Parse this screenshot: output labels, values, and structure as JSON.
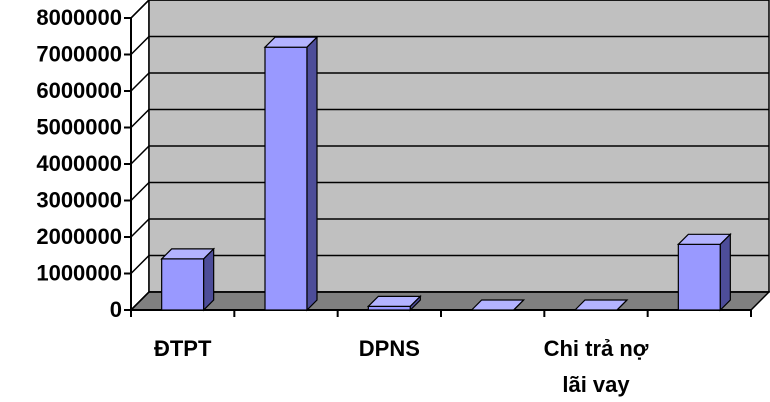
{
  "chart_data": {
    "type": "bar",
    "title": "",
    "xlabel": "",
    "ylabel": "",
    "ylim": [
      0,
      8000000
    ],
    "yticks": [
      0,
      1000000,
      2000000,
      3000000,
      4000000,
      5000000,
      6000000,
      7000000,
      8000000
    ],
    "categories": [
      "ĐTPT",
      "",
      "DPNS",
      "",
      "Chi trả nợ lãi vay",
      ""
    ],
    "category_label_lines": [
      [
        "ĐTPT"
      ],
      [],
      [
        "DPNS"
      ],
      [],
      [
        "Chi trả nợ",
        "lãi vay"
      ],
      []
    ],
    "values": [
      1400000,
      7200000,
      100000,
      0,
      0,
      1800000
    ],
    "grid": true,
    "legend": "none",
    "style": "3d-column"
  },
  "colors": {
    "bar_front": "#9999ff",
    "bar_top": "#b3b3ff",
    "bar_side": "#4d4d99",
    "wall": "#c0c0c0",
    "floor": "#808080",
    "gridline": "#000000"
  }
}
